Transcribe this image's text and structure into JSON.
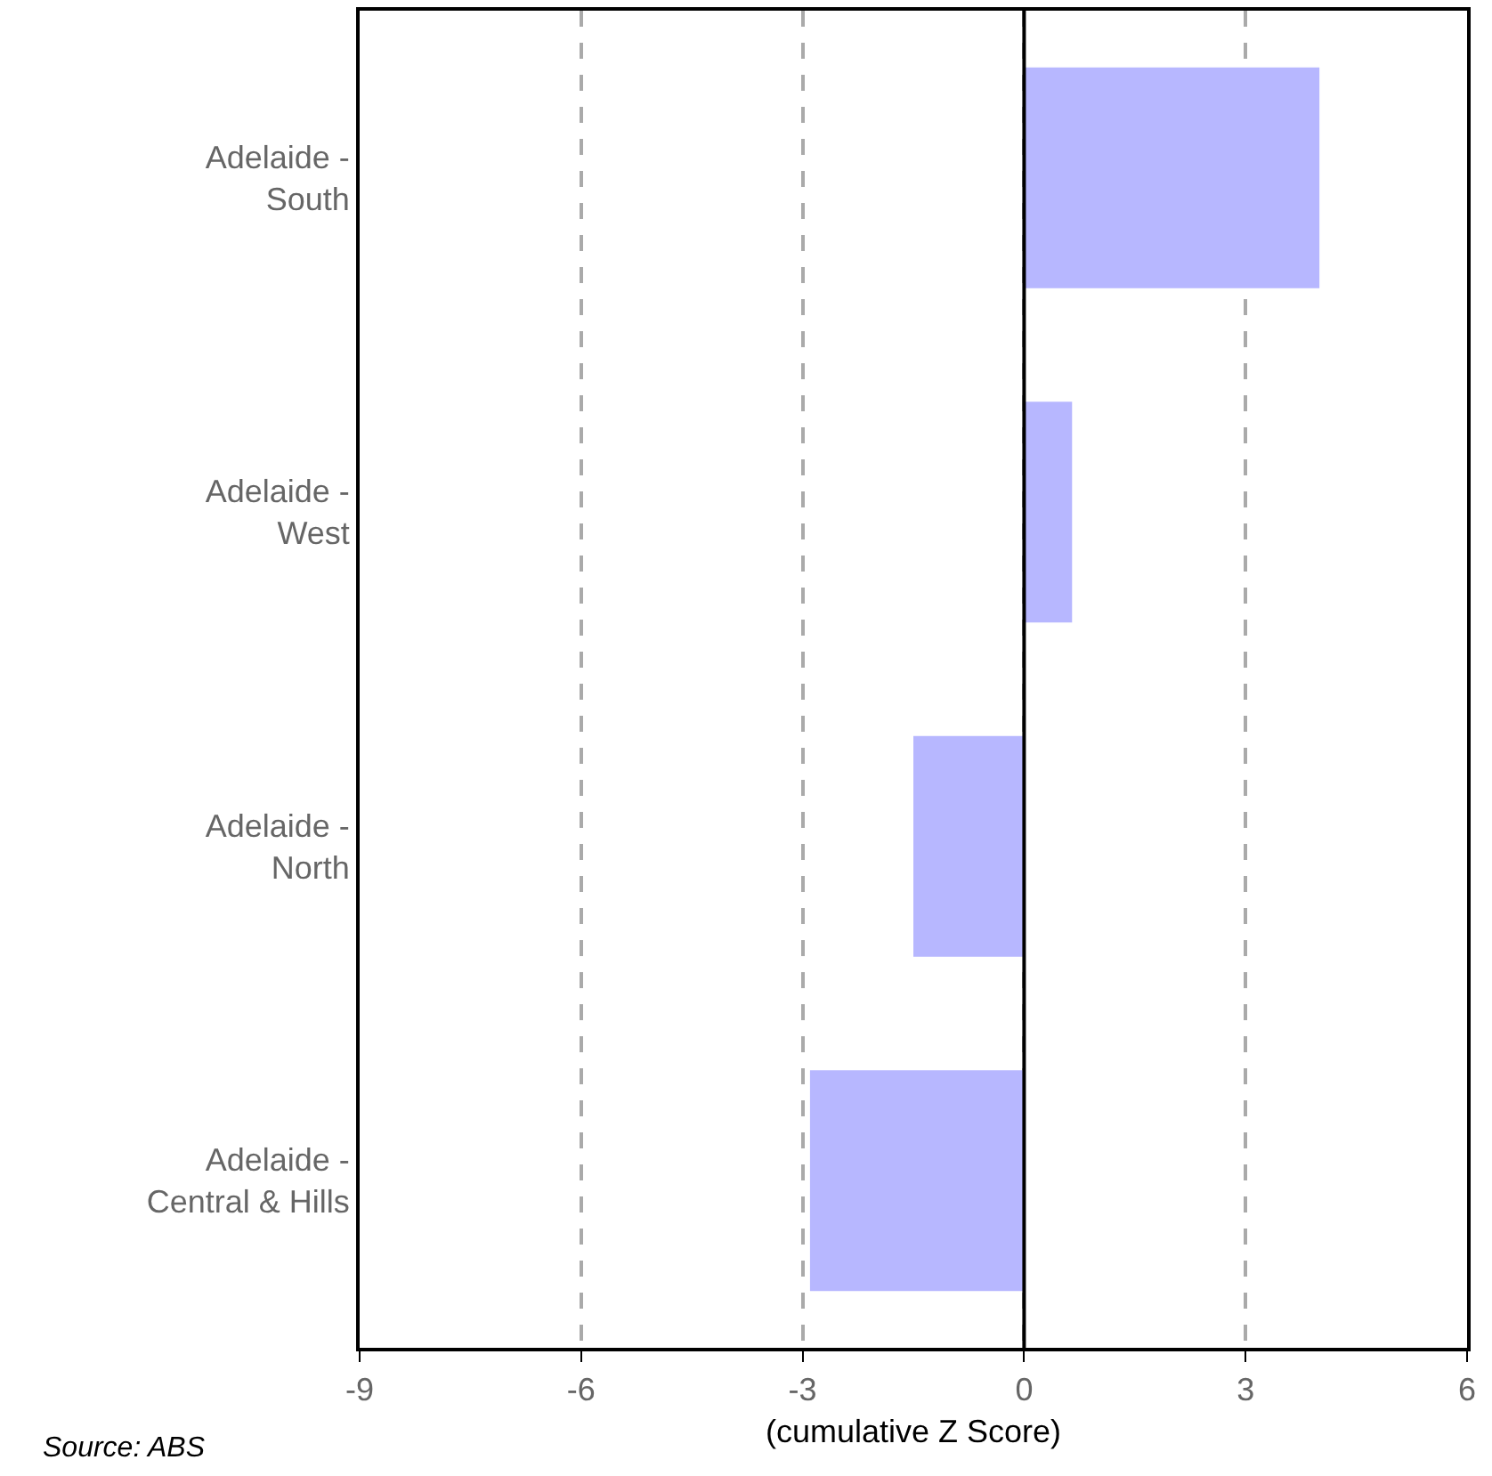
{
  "chart_data": {
    "type": "bar",
    "orientation": "horizontal",
    "xlabel": "(cumulative Z Score)",
    "categories": [
      "Adelaide -\nSouth",
      "Adelaide -\nWest",
      "Adelaide -\nNorth",
      "Adelaide -\nCentral & Hills"
    ],
    "values": [
      4.0,
      0.65,
      -1.5,
      -2.9
    ],
    "color": "#b7b7ff",
    "xlim": [
      -9,
      6
    ],
    "xticks": [
      -9,
      -6,
      -3,
      0,
      3,
      6
    ],
    "grid": "x",
    "ref_lines": [
      {
        "axis": "x",
        "value": 0,
        "color": "#000000"
      }
    ],
    "annotations": [
      "Source: ABS"
    ]
  }
}
